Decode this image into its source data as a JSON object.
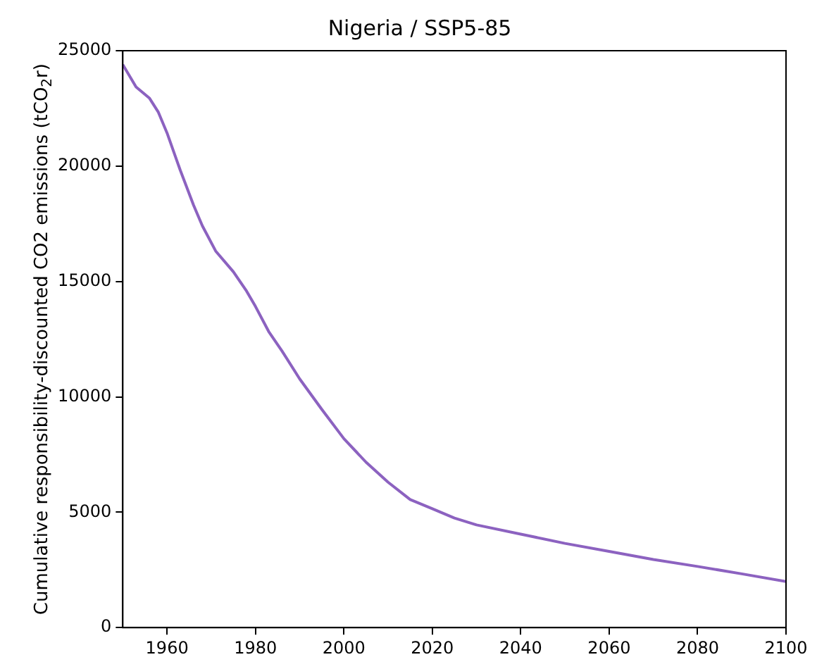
{
  "chart_data": {
    "type": "line",
    "title": "Nigeria / SSP5-85",
    "ylabel": "Cumulative responsibility-discounted CO2 emissions (tCO$_{2}$r)",
    "x": [
      1950,
      1953,
      1956,
      1958,
      1960,
      1963,
      1966,
      1968,
      1971,
      1975,
      1978,
      1980,
      1983,
      1986,
      1990,
      1995,
      2000,
      2005,
      2010,
      2015,
      2020,
      2025,
      2030,
      2040,
      2050,
      2060,
      2070,
      2080,
      2090,
      2100
    ],
    "series": [
      {
        "color": "#8c62c0",
        "values": [
          24400,
          23430,
          22950,
          22350,
          21440,
          19820,
          18310,
          17410,
          16320,
          15420,
          14580,
          13920,
          12830,
          11990,
          10780,
          9460,
          8190,
          7170,
          6300,
          5550,
          5150,
          4750,
          4450,
          4050,
          3650,
          3300,
          2950,
          2650,
          2330,
          2000
        ]
      }
    ],
    "xlim": [
      1950,
      2100
    ],
    "xticks": [
      1960,
      1980,
      2000,
      2020,
      2040,
      2060,
      2080,
      2100
    ],
    "ylim": [
      0,
      25000
    ],
    "yticks": [
      0,
      5000,
      10000,
      15000,
      20000,
      25000
    ],
    "grid": false,
    "legend": false,
    "marker": "none",
    "line_style": "solid"
  }
}
